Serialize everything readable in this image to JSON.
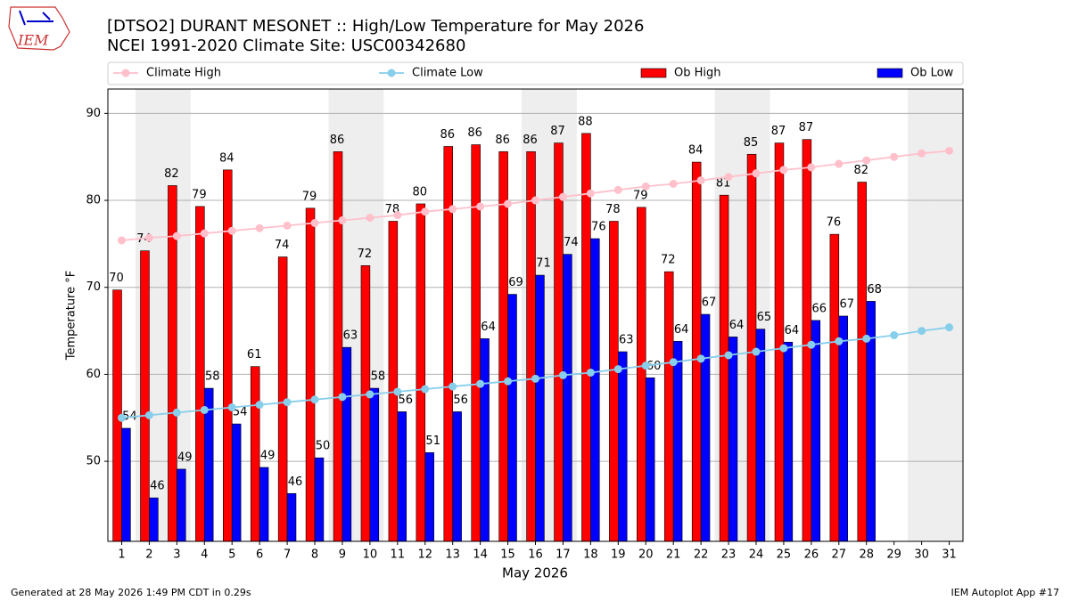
{
  "chart_data": {
    "type": "bar",
    "title": "[DTSO2] DURANT MESONET :: High/Low Temperature for May 2026",
    "subtitle": "NCEI 1991-2020 Climate Site: USC00342680",
    "x_label": "May 2026",
    "y_label": "Temperature °F",
    "logo": "IEM",
    "footer_left": "Generated at 28 May 2026 1:49 PM CDT in 0.29s",
    "footer_right": "IEM Autoplot App #17",
    "legend": "top",
    "grid": true,
    "shaded_categories": [
      "2",
      "3",
      "9",
      "10",
      "16",
      "17",
      "23",
      "24",
      "30",
      "31"
    ],
    "categories": [
      "1",
      "2",
      "3",
      "4",
      "5",
      "6",
      "7",
      "8",
      "9",
      "10",
      "11",
      "12",
      "13",
      "14",
      "15",
      "16",
      "17",
      "18",
      "19",
      "20",
      "21",
      "22",
      "23",
      "24",
      "25",
      "26",
      "27",
      "28",
      "29",
      "30",
      "31"
    ],
    "ylim": [
      40.8,
      92.8
    ],
    "yticks": [
      50,
      60,
      70,
      80,
      90
    ],
    "series": [
      {
        "name": "Climate High",
        "type": "line",
        "color": "#ffc0cb",
        "values": [
          75.4,
          75.7,
          75.9,
          76.2,
          76.5,
          76.8,
          77.1,
          77.4,
          77.7,
          78.0,
          78.3,
          78.7,
          79.0,
          79.3,
          79.6,
          80.0,
          80.4,
          80.8,
          81.2,
          81.6,
          81.9,
          82.3,
          82.7,
          83.1,
          83.5,
          83.8,
          84.2,
          84.6,
          85.0,
          85.4,
          85.7
        ]
      },
      {
        "name": "Climate Low",
        "type": "line",
        "color": "#87ceeb",
        "values": [
          55.0,
          55.3,
          55.6,
          55.9,
          56.2,
          56.5,
          56.8,
          57.1,
          57.4,
          57.7,
          58.0,
          58.3,
          58.6,
          58.9,
          59.2,
          59.5,
          59.9,
          60.2,
          60.6,
          61.0,
          61.4,
          61.8,
          62.2,
          62.6,
          63.0,
          63.4,
          63.8,
          64.1,
          64.5,
          65.0,
          65.4
        ]
      },
      {
        "name": "Ob High",
        "type": "bar",
        "color": "#ff0000",
        "values": [
          69.7,
          74.2,
          81.7,
          79.3,
          83.5,
          60.9,
          73.5,
          79.1,
          85.6,
          72.5,
          77.6,
          79.6,
          86.2,
          86.4,
          85.6,
          85.6,
          86.6,
          87.7,
          77.6,
          79.2,
          71.8,
          84.4,
          80.6,
          85.3,
          86.6,
          87.0,
          76.1,
          82.1,
          null,
          null,
          null
        ],
        "value_labels": [
          "70",
          "74",
          "82",
          "79",
          "84",
          "61",
          "74",
          "79",
          "86",
          "72",
          "78",
          "80",
          "86",
          "86",
          "86",
          "86",
          "87",
          "88",
          "78",
          "79",
          "72",
          "84",
          "81",
          "85",
          "87",
          "87",
          "76",
          "82",
          null,
          null,
          null
        ]
      },
      {
        "name": "Ob Low",
        "type": "bar",
        "color": "#0000ff",
        "values": [
          53.8,
          45.8,
          49.1,
          58.4,
          54.3,
          49.3,
          46.3,
          50.4,
          63.1,
          58.4,
          55.7,
          51.0,
          55.7,
          64.1,
          69.2,
          71.4,
          73.8,
          75.6,
          62.6,
          59.6,
          63.8,
          66.9,
          64.3,
          65.2,
          63.7,
          66.2,
          66.7,
          68.4,
          null,
          null,
          null
        ],
        "value_labels": [
          "54",
          "46",
          "49",
          "58",
          "54",
          "49",
          "46",
          "50",
          "63",
          "58",
          "56",
          "51",
          "56",
          "64",
          "69",
          "71",
          "74",
          "76",
          "63",
          "60",
          "64",
          "67",
          "64",
          "65",
          "64",
          "66",
          "67",
          "68",
          null,
          null,
          null
        ]
      }
    ]
  }
}
